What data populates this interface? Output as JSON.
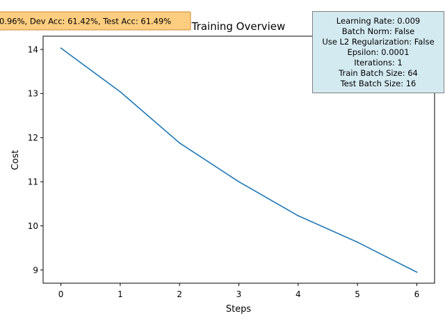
{
  "chart_data": {
    "type": "line",
    "title": "Training Overview",
    "xlabel": "Steps",
    "ylabel": "Cost",
    "xlim": [
      -0.3,
      6.3
    ],
    "ylim": [
      8.7,
      14.3
    ],
    "xticks": [
      0,
      1,
      2,
      3,
      4,
      5,
      6
    ],
    "yticks": [
      9,
      10,
      11,
      12,
      13,
      14
    ],
    "grid": false,
    "series": [
      {
        "x": [
          0,
          1,
          2,
          3,
          4,
          5,
          6
        ],
        "y": [
          14.03,
          13.04,
          11.88,
          11.0,
          10.23,
          9.63,
          8.95
        ],
        "color": "#1f77b4"
      }
    ],
    "annotations": {
      "accuracy": {
        "text": "0.96%, Dev Acc: 61.42%, Test Acc: 61.49%",
        "background": "#fdcd80",
        "border": "#d08a35"
      },
      "hyperparameters": {
        "lines": [
          "Learning Rate: 0.009",
          "Batch Norm: False",
          "Use L2 Regularization: False",
          "Epsilon: 0.0001",
          "Iterations: 1",
          "Train Batch Size: 64",
          "Test Batch Size: 16"
        ],
        "background": "#d4eaf1",
        "border": "#7f7f7f"
      }
    }
  }
}
